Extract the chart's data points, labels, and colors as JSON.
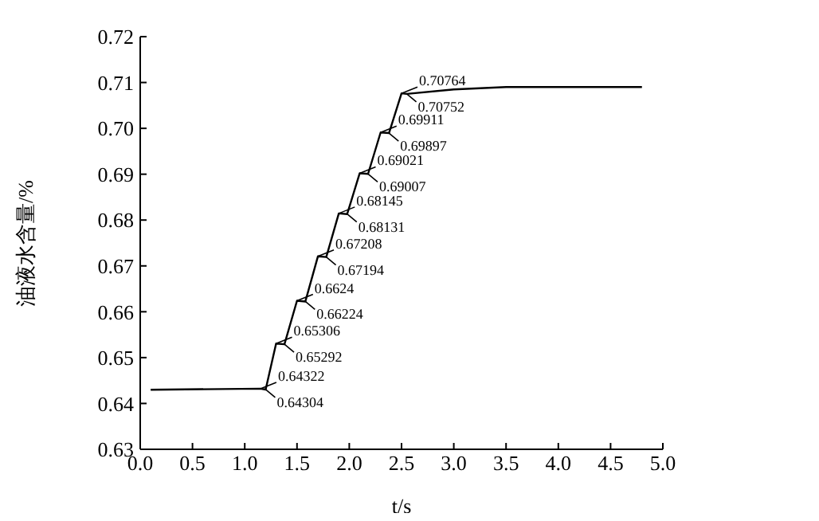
{
  "chart_data": {
    "type": "line",
    "xlabel": "t/s",
    "ylabel": "油液水含量/%",
    "x": [
      0.1,
      1.15,
      1.2,
      1.3,
      1.38,
      1.5,
      1.58,
      1.7,
      1.78,
      1.9,
      1.98,
      2.1,
      2.18,
      2.3,
      2.38,
      2.5,
      2.55,
      3.0,
      3.5,
      4.8
    ],
    "series": [
      {
        "color": "#000000",
        "values": [
          0.643,
          0.64322,
          0.64304,
          0.65306,
          0.65292,
          0.6624,
          0.66224,
          0.67208,
          0.67194,
          0.68145,
          0.68131,
          0.69021,
          0.69007,
          0.69911,
          0.69897,
          0.70764,
          0.70752,
          0.7085,
          0.709,
          0.709
        ]
      }
    ],
    "xlim": [
      0,
      5
    ],
    "xticks": [
      {
        "value": 0,
        "label": "0.0"
      },
      0.5,
      {
        "value": 1,
        "label": "1.0"
      },
      1.5,
      {
        "value": 2,
        "label": "2.0"
      },
      2.5,
      {
        "value": 3,
        "label": "3.0"
      },
      3.5,
      {
        "value": 4,
        "label": "4.0"
      },
      4.5,
      {
        "value": 5,
        "label": "5.0"
      }
    ],
    "ylim": [
      0.63,
      0.72
    ],
    "yticks": [
      0.63,
      0.64,
      0.65,
      0.66,
      0.67,
      0.68,
      0.69,
      {
        "value": 0.7,
        "label": "0.70"
      },
      0.71,
      0.72
    ],
    "grid": false,
    "marker": "none",
    "line_style": "solid",
    "annotations": [
      {
        "text": "0.64322",
        "x": 1.15,
        "y": 0.64322
      },
      {
        "text": "0.64304",
        "x": 1.2,
        "y": 0.64304
      },
      {
        "text": "0.65306",
        "x": 1.3,
        "y": 0.65306
      },
      {
        "text": "0.65292",
        "x": 1.38,
        "y": 0.65292
      },
      {
        "text": "0.6624",
        "x": 1.5,
        "y": 0.6624
      },
      {
        "text": "0.66224",
        "x": 1.58,
        "y": 0.66224
      },
      {
        "text": "0.67208",
        "x": 1.7,
        "y": 0.67208
      },
      {
        "text": "0.67194",
        "x": 1.78,
        "y": 0.67194
      },
      {
        "text": "0.68145",
        "x": 1.9,
        "y": 0.68145
      },
      {
        "text": "0.68131",
        "x": 1.98,
        "y": 0.68131
      },
      {
        "text": "0.69021",
        "x": 2.1,
        "y": 0.69021
      },
      {
        "text": "0.69007",
        "x": 2.18,
        "y": 0.69007
      },
      {
        "text": "0.69911",
        "x": 2.3,
        "y": 0.69911
      },
      {
        "text": "0.69897",
        "x": 2.38,
        "y": 0.69897
      },
      {
        "text": "0.70764",
        "x": 2.5,
        "y": 0.70764
      },
      {
        "text": "0.70752",
        "x": 2.55,
        "y": 0.70752
      }
    ]
  }
}
